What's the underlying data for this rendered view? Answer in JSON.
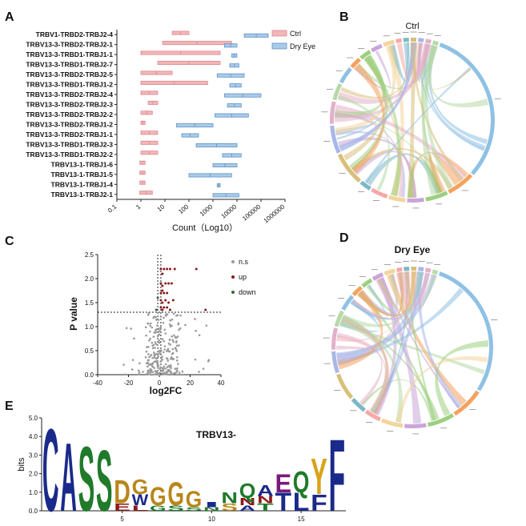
{
  "panels": {
    "A": {
      "letter": "A"
    },
    "B": {
      "letter": "B",
      "title": "Ctrl"
    },
    "C": {
      "letter": "C"
    },
    "D": {
      "letter": "D",
      "title": "Dry Eye"
    },
    "E": {
      "letter": "E"
    }
  },
  "chart_data": [
    {
      "id": "A",
      "type": "bar",
      "orientation": "horizontal-floating",
      "xscale": "log",
      "xlabel": "Count（Log10）",
      "xticks": [
        "0.1",
        "1",
        "10",
        "100",
        "1000",
        "10000",
        "100000",
        "1000000"
      ],
      "xlim": [
        0.1,
        1000000
      ],
      "colors": {
        "Ctrl": "#f4b6b8",
        "Dry Eye": "#a9cbe9"
      },
      "categories": [
        "TRBV1-TRBD2-TRBJ2-4",
        "TRBV13-3-TRBD2-TRBJ2-1",
        "TRBV13-3-TRBD1-TRBJ1-1",
        "TRBV13-3-TRBD1-TRBJ2-7",
        "TRBV13-3-TRBD2-TRBJ2-5",
        "TRBV13-3-TRBD1-TRBJ1-2",
        "TRBV13-3-TRBD2-TRBJ2-4",
        "TRBV13-3-TRBD2-TRBJ2-3",
        "TRBV13-3-TRBD2-TRBJ2-2",
        "TRBV13-3-TRBD2-TRBJ1-2",
        "TRBV13-3-TRBD2-TRBJ1-1",
        "TRBV13-3-TRBD1-TRBJ2-3",
        "TRBV13-3-TRBD1-TRBJ2-2",
        "TRBV13-1-TRBJ1-6",
        "TRBV13-1-TRBJ1-5",
        "TRBV13-1-TRBJ1-4",
        "TRBV13-1-TRBJ2-1"
      ],
      "series": [
        {
          "name": "Ctrl",
          "ranges": [
            [
              20,
              100
            ],
            [
              8,
              6000
            ],
            [
              1,
              2000
            ],
            [
              5,
              2000
            ],
            [
              1,
              20
            ],
            [
              1,
              600
            ],
            [
              1,
              5
            ],
            [
              2,
              5
            ],
            [
              1,
              3
            ],
            [
              1,
              1.5
            ],
            [
              1,
              5
            ],
            [
              1,
              5
            ],
            [
              1,
              5
            ],
            [
              0.9,
              1.5
            ],
            [
              0.9,
              1.5
            ],
            [
              0.9,
              1.5
            ],
            [
              0.9,
              3
            ]
          ]
        },
        {
          "name": "Dry Eye",
          "ranges": [
            [
              20000,
              200000
            ],
            [
              3000,
              10000
            ],
            [
              6000,
              10000
            ],
            [
              5000,
              12000
            ],
            [
              1500,
              20000
            ],
            [
              5000,
              15000
            ],
            [
              3000,
              100000
            ],
            [
              4000,
              15000
            ],
            [
              1200,
              30000
            ],
            [
              30,
              1000
            ],
            [
              50,
              250
            ],
            [
              200,
              10000
            ],
            [
              2500,
              15000
            ],
            [
              1000,
              10000
            ],
            [
              100,
              6000
            ],
            [
              1500,
              2000
            ],
            [
              1000,
              12000
            ]
          ]
        }
      ],
      "legend": {
        "position": "top-right"
      }
    },
    {
      "id": "C",
      "type": "scatter",
      "xlabel": "log2FC",
      "ylabel": "P value",
      "xlim": [
        -40,
        40
      ],
      "ylim": [
        0,
        2.5
      ],
      "xticks": [
        "-40",
        "-20",
        "0",
        "20",
        "40"
      ],
      "yticks": [
        "0.0",
        "0.5",
        "1.0",
        "1.5",
        "2.0",
        "2.5"
      ],
      "threshold_y": 1.3,
      "threshold_x": [
        -1,
        1
      ],
      "legend": [
        {
          "name": "n.s",
          "color": "#9a9a9a"
        },
        {
          "name": "up",
          "color": "#8b1a1a"
        },
        {
          "name": "down",
          "color": "#2f6b3a"
        }
      ],
      "points_up": [
        [
          1,
          2.2
        ],
        [
          2,
          2.1
        ],
        [
          3,
          2.2
        ],
        [
          5,
          2.2
        ],
        [
          7,
          2.2
        ],
        [
          10,
          2.2
        ],
        [
          24,
          2.2
        ],
        [
          1,
          1.9
        ],
        [
          2,
          1.85
        ],
        [
          4,
          1.9
        ],
        [
          6,
          1.9
        ],
        [
          8,
          1.9
        ],
        [
          1,
          1.7
        ],
        [
          2,
          1.75
        ],
        [
          3,
          1.7
        ],
        [
          5,
          1.7
        ],
        [
          1,
          1.55
        ],
        [
          2,
          1.5
        ],
        [
          4,
          1.55
        ],
        [
          6,
          1.5
        ],
        [
          9,
          1.55
        ],
        [
          1,
          1.4
        ],
        [
          2,
          1.35
        ],
        [
          3,
          1.4
        ],
        [
          5,
          1.4
        ],
        [
          7,
          1.35
        ],
        [
          30,
          1.35
        ]
      ],
      "points_down": [
        [
          -2,
          1.35
        ],
        [
          -1,
          1.6
        ]
      ],
      "points_ns_summary": "dense cloud between log2FC -30 and 30, mostly below P value 1.3"
    },
    {
      "id": "B",
      "type": "chord",
      "title": "Ctrl"
    },
    {
      "id": "D",
      "type": "chord",
      "title": "Dry Eye"
    },
    {
      "id": "E",
      "type": "sequence-logo",
      "ylabel": "bits",
      "ylim": [
        0,
        5.0
      ],
      "yticks": [
        "0.0",
        "1.0",
        "2.0",
        "3.0",
        "4.0",
        "5.0"
      ],
      "xticks": [
        "5",
        "10",
        "15"
      ],
      "annotation": "TRBV13-",
      "positions": [
        {
          "pos": 1,
          "letters": [
            {
              "l": "C",
              "h": 4.6,
              "c": "#1a2a8a"
            }
          ]
        },
        {
          "pos": 2,
          "letters": [
            {
              "l": "A",
              "h": 3.8,
              "c": "#1a2a8a"
            }
          ]
        },
        {
          "pos": 3,
          "letters": [
            {
              "l": "S",
              "h": 3.6,
              "c": "#1f7a2a"
            }
          ]
        },
        {
          "pos": 4,
          "letters": [
            {
              "l": "S",
              "h": 3.4,
              "c": "#1f7a2a"
            }
          ]
        },
        {
          "pos": 5,
          "letters": [
            {
              "l": "D",
              "h": 1.3,
              "c": "#b8861a"
            },
            {
              "l": "E",
              "h": 0.4,
              "c": "#8b1a1a"
            }
          ]
        },
        {
          "pos": 6,
          "letters": [
            {
              "l": "G",
              "h": 0.8,
              "c": "#b8861a"
            },
            {
              "l": "W",
              "h": 0.6,
              "c": "#1a2a8a"
            },
            {
              "l": "L",
              "h": 0.3,
              "c": "#8b1a1a"
            }
          ]
        },
        {
          "pos": 7,
          "letters": [
            {
              "l": "G",
              "h": 1.0,
              "c": "#b8861a"
            },
            {
              "l": "G",
              "h": 0.3,
              "c": "#1f7a2a"
            }
          ]
        },
        {
          "pos": 8,
          "letters": [
            {
              "l": "G",
              "h": 1.3,
              "c": "#b8861a"
            },
            {
              "l": "S",
              "h": 0.3,
              "c": "#1f7a2a"
            }
          ]
        },
        {
          "pos": 9,
          "letters": [
            {
              "l": "G",
              "h": 0.9,
              "c": "#b8861a"
            },
            {
              "l": "S",
              "h": 0.2,
              "c": "#1f7a2a"
            }
          ]
        },
        {
          "pos": 10,
          "letters": [
            {
              "l": "I",
              "h": 0.3,
              "c": "#1a2a8a"
            },
            {
              "l": "N",
              "h": 0.2,
              "c": "#1f7a2a"
            }
          ]
        },
        {
          "pos": 11,
          "letters": [
            {
              "l": "N",
              "h": 0.6,
              "c": "#1f7a2a"
            },
            {
              "l": "S",
              "h": 0.4,
              "c": "#b8861a"
            }
          ]
        },
        {
          "pos": 12,
          "letters": [
            {
              "l": "Q",
              "h": 0.8,
              "c": "#1f7a2a"
            },
            {
              "l": "N",
              "h": 0.4,
              "c": "#8b1a1a"
            },
            {
              "l": "A",
              "h": 0.3,
              "c": "#1a2a8a"
            }
          ]
        },
        {
          "pos": 13,
          "letters": [
            {
              "l": "A",
              "h": 0.6,
              "c": "#1a2a8a"
            },
            {
              "l": "N",
              "h": 0.4,
              "c": "#8b1a1a"
            },
            {
              "l": "T",
              "h": 0.4,
              "c": "#1f7a2a"
            }
          ]
        },
        {
          "pos": 14,
          "letters": [
            {
              "l": "E",
              "h": 1.0,
              "c": "#7a1a7a"
            },
            {
              "l": "T",
              "h": 1.0,
              "c": "#1a2a8a"
            }
          ]
        },
        {
          "pos": 15,
          "letters": [
            {
              "l": "Q",
              "h": 1.2,
              "c": "#1f7a2a"
            },
            {
              "l": "L",
              "h": 1.0,
              "c": "#1a2a8a"
            }
          ]
        },
        {
          "pos": 16,
          "letters": [
            {
              "l": "Y",
              "h": 2.0,
              "c": "#d9a21a"
            },
            {
              "l": "F",
              "h": 0.9,
              "c": "#1a2a8a"
            }
          ]
        },
        {
          "pos": 17,
          "letters": [
            {
              "l": "F",
              "h": 4.0,
              "c": "#1a2a8a"
            }
          ]
        }
      ]
    }
  ]
}
